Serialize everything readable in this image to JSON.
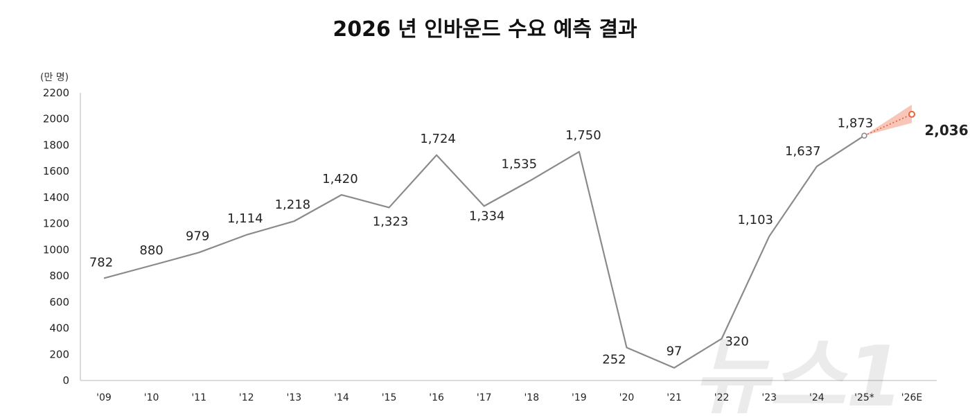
{
  "chart_data": {
    "type": "line",
    "title": "2026 년 인바운드 수요 예측 결과",
    "unit_label": "(만 명)",
    "categories": [
      "'09",
      "'10",
      "'11",
      "'12",
      "'13",
      "'14",
      "'15",
      "'16",
      "'17",
      "'18",
      "'19",
      "'20",
      "'21",
      "'22",
      "'23",
      "'24",
      "'25*",
      "'26E"
    ],
    "series": [
      {
        "values": [
          782,
          880,
          979,
          1114,
          1218,
          1420,
          1323,
          1724,
          1334,
          1535,
          1750,
          252,
          97,
          320,
          1103,
          1637,
          1873,
          2036
        ],
        "labels": [
          "782",
          "880",
          "979",
          "1,114",
          "1,218",
          "1,420",
          "1,323",
          "1,724",
          "1,334",
          "1,535",
          "1,750",
          "252",
          "97",
          "320",
          "1,103",
          "1,637",
          "1,873",
          "2,036"
        ]
      }
    ],
    "forecast_range": {
      "category": "'26E",
      "low": 1970,
      "high": 2110
    },
    "ylim": [
      0,
      2200
    ],
    "yticks": [
      0,
      200,
      400,
      600,
      800,
      1000,
      1200,
      1400,
      1600,
      1800,
      2000,
      2200
    ],
    "grid": false,
    "colors": {
      "line": "#8a8a8a",
      "highlight": "#e8663d",
      "forecast_fill": "#f5b3a0"
    }
  },
  "watermark": {
    "text": "뉴스1"
  }
}
